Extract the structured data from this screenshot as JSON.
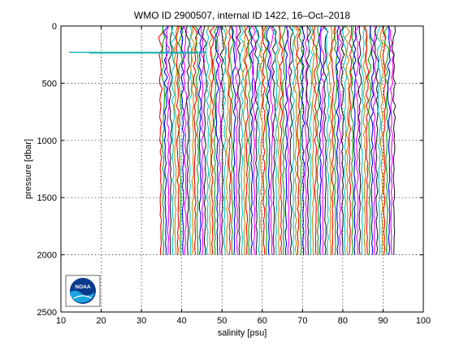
{
  "chart_data": {
    "type": "line",
    "title": "WMO ID 2900507, internal ID 1422, 16–Oct–2018",
    "xlabel": "salinity [psu]",
    "ylabel": "pressure [dbar]",
    "xlim": [
      10,
      100
    ],
    "ylim": [
      2500,
      0
    ],
    "y_reversed": true,
    "grid": true,
    "x_ticks": [
      "10",
      "20",
      "30",
      "40",
      "50",
      "60",
      "70",
      "80",
      "90",
      "100"
    ],
    "y_ticks": [
      "0",
      "500",
      "1000",
      "1500",
      "2000",
      "2500"
    ],
    "profiles": {
      "count": 96,
      "salinity_first_psu": 34.8,
      "salinity_step_psu": 0.61,
      "pressure_max_dbar": 2000,
      "colors": [
        "#ff0000",
        "#00aa00",
        "#0000ff",
        "#ff00ff",
        "#222222",
        "#00cccc",
        "#cc8800"
      ]
    },
    "outlier": {
      "pressure_dbar": 230,
      "salinity_psu": [
        12.0,
        46.0
      ],
      "color": "#00aabb"
    },
    "logo": {
      "name": "noaa-logo",
      "text": "NOAA"
    }
  }
}
